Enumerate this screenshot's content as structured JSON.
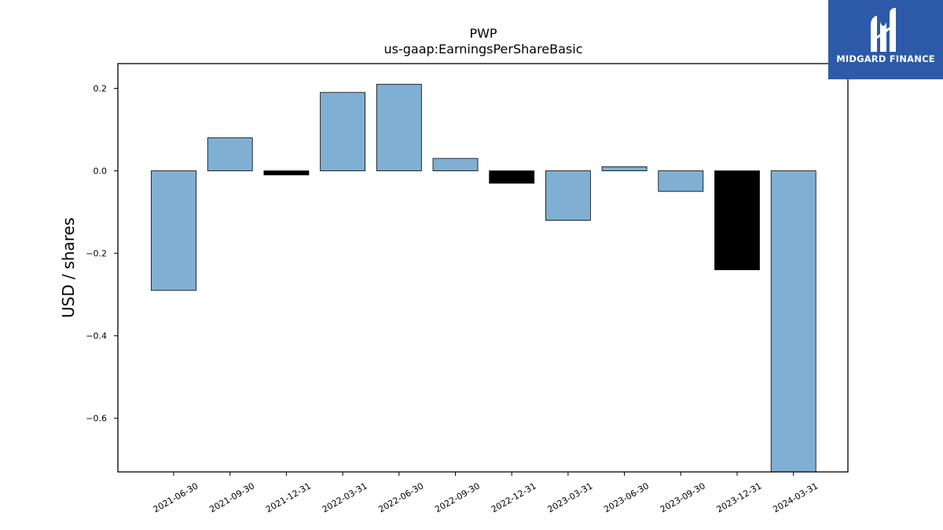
{
  "brand": {
    "name": "MIDGARD FINANCE",
    "logo_icon": "midgard-logo-icon",
    "background_color": "#2c5aa8"
  },
  "chart_data": {
    "type": "bar",
    "title": "PWP",
    "subtitle": "us-gaap:EarningsPerShareBasic",
    "ylabel": "USD / shares",
    "xlabel": "",
    "ylim": [
      -0.73,
      0.26
    ],
    "yticks": [
      0.2,
      0.0,
      -0.2,
      -0.4,
      -0.6
    ],
    "ytick_labels": [
      "0.2",
      "0.0",
      "−0.2",
      "−0.4",
      "−0.6"
    ],
    "grid": false,
    "categories": [
      "2021-06-30",
      "2021-09-30",
      "2021-12-31",
      "2022-03-31",
      "2022-06-30",
      "2022-09-30",
      "2022-12-31",
      "2023-03-31",
      "2023-06-30",
      "2023-09-30",
      "2023-12-31",
      "2024-03-31"
    ],
    "values": [
      -0.29,
      0.08,
      -0.01,
      0.19,
      0.21,
      0.03,
      -0.03,
      -0.12,
      0.01,
      -0.05,
      -0.24,
      -0.73
    ],
    "bar_colors": [
      "#7fb0d4",
      "#7fb0d4",
      "#000000",
      "#7fb0d4",
      "#7fb0d4",
      "#7fb0d4",
      "#000000",
      "#7fb0d4",
      "#7fb0d4",
      "#7fb0d4",
      "#000000",
      "#7fb0d4"
    ]
  }
}
